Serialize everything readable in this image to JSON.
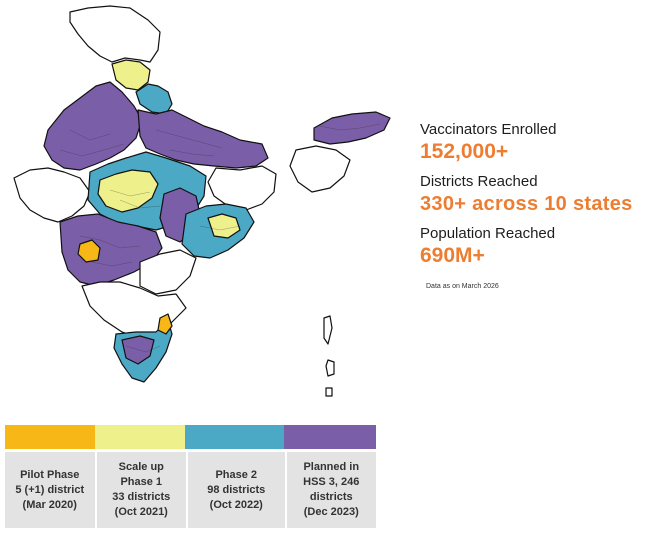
{
  "colors": {
    "pilot": "#f7b817",
    "scale_up": "#eef08c",
    "phase2": "#4ba9c6",
    "planned": "#7b5ea8",
    "unassigned": "#ffffff",
    "border": "#111111",
    "accent": "#ed7d31"
  },
  "stats": {
    "vaccinators_label": "Vaccinators Enrolled",
    "vaccinators_value": "152,000+",
    "districts_label": "Districts Reached",
    "districts_value": "330+ across 10 states",
    "population_label": "Population Reached",
    "population_value": "690M+",
    "note": "Data as on March 2026"
  },
  "legend": [
    {
      "key": "pilot",
      "lines": [
        "Pilot  Phase",
        "5 (+1) district",
        "(Mar 2020)"
      ]
    },
    {
      "key": "scale_up",
      "lines": [
        "Scale up",
        "Phase 1",
        "33 districts",
        "(Oct 2021)"
      ]
    },
    {
      "key": "phase2",
      "lines": [
        "Phase 2",
        "98 districts",
        "(Oct 2022)"
      ]
    },
    {
      "key": "planned",
      "lines": [
        "Planned in",
        "HSS 3, 246",
        "districts",
        "(Dec 2023)"
      ]
    }
  ],
  "map": {
    "regions": [
      {
        "name": "jammu-kashmir-region",
        "phase": "unassigned"
      },
      {
        "name": "himachal-region",
        "phase": "scale_up"
      },
      {
        "name": "uttarakhand-region",
        "phase": "phase2"
      },
      {
        "name": "rajasthan-punjab-region",
        "phase": "planned"
      },
      {
        "name": "uttar-pradesh-bihar-region",
        "phase": "planned"
      },
      {
        "name": "gujarat-region",
        "phase": "unassigned"
      },
      {
        "name": "madhya-pradesh-region",
        "phase": "phase2"
      },
      {
        "name": "madhya-pradesh-scale-up-region",
        "phase": "scale_up"
      },
      {
        "name": "jharkhand-bengal-region",
        "phase": "unassigned"
      },
      {
        "name": "maharashtra-region",
        "phase": "planned"
      },
      {
        "name": "maharashtra-pilot-region",
        "phase": "pilot"
      },
      {
        "name": "chhattisgarh-region",
        "phase": "planned"
      },
      {
        "name": "odisha-region",
        "phase": "phase2"
      },
      {
        "name": "odisha-scale-up-region",
        "phase": "scale_up"
      },
      {
        "name": "telangana-region",
        "phase": "unassigned"
      },
      {
        "name": "karnataka-andhra-region",
        "phase": "unassigned"
      },
      {
        "name": "tamil-nadu-region",
        "phase": "phase2"
      },
      {
        "name": "tamil-nadu-planned-region",
        "phase": "planned"
      },
      {
        "name": "tamil-nadu-pilot-region",
        "phase": "pilot"
      },
      {
        "name": "northeast-region",
        "phase": "planned"
      },
      {
        "name": "northeast-white-region",
        "phase": "unassigned"
      },
      {
        "name": "andaman-islands",
        "phase": "unassigned"
      }
    ]
  }
}
